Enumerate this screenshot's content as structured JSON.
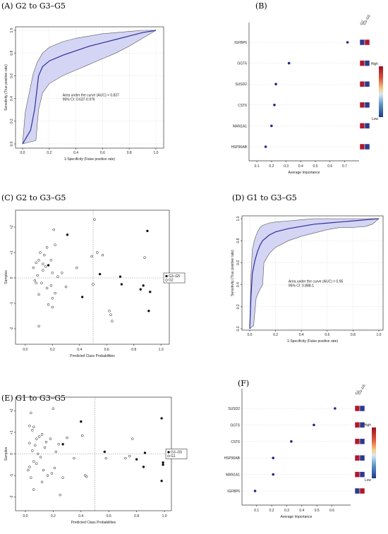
{
  "chart_data": [
    {
      "id": "A",
      "type": "line",
      "panel_label": "(A) G2 to G3–G5",
      "xlabel": "1-Specificity (False positive rate)",
      "ylabel": "Sensitivity (True positive rate)",
      "xlim": [
        0,
        1
      ],
      "ylim": [
        0,
        1
      ],
      "xticks": [
        "0.0",
        "0.2",
        "0.4",
        "0.6",
        "0.8",
        "1.0"
      ],
      "yticks": [
        "0.0",
        "0.2",
        "0.4",
        "0.6",
        "0.8",
        "1.0"
      ],
      "grid": true,
      "annotation": [
        "Area under the curve (AUC) = 0.837",
        "95% CI: 0.637-0.976"
      ],
      "series": [
        {
          "role": "roc",
          "x": [
            0,
            0.03,
            0.06,
            0.09,
            0.12,
            0.15,
            0.2,
            0.3,
            0.4,
            0.5,
            0.6,
            0.7,
            0.8,
            0.9,
            1.0
          ],
          "y": [
            0,
            0.06,
            0.12,
            0.3,
            0.6,
            0.68,
            0.73,
            0.78,
            0.82,
            0.86,
            0.89,
            0.92,
            0.95,
            0.98,
            1.0
          ]
        },
        {
          "role": "ci_upper",
          "x": [
            0,
            0.02,
            0.05,
            0.08,
            0.11,
            0.15,
            0.2,
            0.3,
            0.4,
            0.5,
            0.6,
            0.7,
            0.8,
            0.9,
            1.0
          ],
          "y": [
            0,
            0.28,
            0.45,
            0.62,
            0.72,
            0.8,
            0.85,
            0.9,
            0.93,
            0.95,
            0.97,
            0.98,
            0.99,
            1.0,
            1.0
          ]
        },
        {
          "role": "ci_lower",
          "x": [
            0,
            0.1,
            0.12,
            0.15,
            0.2,
            0.3,
            0.4,
            0.5,
            0.6,
            0.7,
            0.8,
            0.9,
            1.0
          ],
          "y": [
            0,
            0.03,
            0.3,
            0.45,
            0.53,
            0.6,
            0.65,
            0.7,
            0.75,
            0.8,
            0.86,
            0.93,
            1.0
          ]
        }
      ]
    },
    {
      "id": "B",
      "type": "scatter",
      "panel_label": "(B)",
      "xlabel": "Average Importance",
      "xlim": [
        0.08,
        0.78
      ],
      "xticks": [
        "0.1",
        "0.2",
        "0.3",
        "0.4",
        "0.5",
        "0.6",
        "0.7"
      ],
      "categories": [
        "IGFBP6",
        "GGT6",
        "SUSD2",
        "CST6",
        "MAN1A1",
        "HSP90AB"
      ],
      "values": [
        0.72,
        0.32,
        0.23,
        0.22,
        0.2,
        0.16
      ],
      "heat_header": [
        "G2",
        "G3–G5"
      ],
      "heat": [
        [
          "#2b3a8f",
          "#b0182c"
        ],
        [
          "#b0182c",
          "#2b3a8f"
        ],
        [
          "#b0182c",
          "#2b3a8f"
        ],
        [
          "#b0182c",
          "#2b3a8f"
        ],
        [
          "#b0182c",
          "#2b3a8f"
        ],
        [
          "#b0182c",
          "#2b3a8f"
        ]
      ],
      "colorbar": {
        "high": "High",
        "low": "Low"
      }
    },
    {
      "id": "C",
      "type": "scatter",
      "panel_label": "(C) G2 to G3–G5",
      "xlabel": "Predicted Class Probabilities",
      "ylabel": "Samples",
      "xlim": [
        -0.02,
        1.02
      ],
      "ylim": [
        -2.5,
        2.5
      ],
      "xticks": [
        "0.0",
        "0.2",
        "0.4",
        "0.6",
        "0.8",
        "1.0"
      ],
      "yticks": [
        "-2",
        "-1",
        "0",
        "+1",
        "+2"
      ],
      "threshold": 0.5,
      "legend": [
        "G3–G5",
        "G2"
      ],
      "series": [
        {
          "name": "G3–G5",
          "filled": true,
          "x": [
            0.31,
            0.17,
            0.55,
            0.7,
            0.71,
            0.42,
            0.85,
            0.87,
            0.9,
            0.92,
            0.91
          ],
          "y": [
            1.7,
            0.5,
            0.15,
            0.05,
            -0.25,
            -0.75,
            -0.45,
            -0.3,
            1.85,
            -0.55,
            -1.3
          ]
        },
        {
          "name": "G2",
          "filled": true,
          "x": [
            0.06,
            0.08,
            0.1,
            0.13,
            0.15,
            0.16,
            0.11,
            0.14,
            0.19,
            0.22,
            0.21,
            0.13,
            0.09,
            0.07,
            0.2,
            0.24,
            0.27,
            0.19,
            0.16,
            0.1,
            0.22,
            0.3,
            0.38,
            0.12,
            0.17,
            0.2,
            0.1,
            0.08,
            0.51,
            0.53,
            0.49,
            0.57,
            0.5,
            0.62,
            0.63,
            0.64,
            0.88,
            0.2
          ],
          "y": [
            0.4,
            0.6,
            0.7,
            0.55,
            0.45,
            1.2,
            1.0,
            0.9,
            0.7,
            1.3,
            1.9,
            0.3,
            0.1,
            -0.1,
            0.2,
            0.05,
            0.2,
            -0.3,
            -0.4,
            -0.65,
            -0.6,
            -0.35,
            0.4,
            -0.2,
            -1.05,
            -1.15,
            -1.9,
            -0.2,
            2.3,
            1.0,
            0.85,
            0.9,
            -0.25,
            -1.3,
            -1.45,
            -1.7,
            0.8,
            -0.8
          ]
        }
      ]
    },
    {
      "id": "D",
      "type": "line",
      "panel_label": "(D) G1 to G3–G5",
      "xlabel": "1-Specificity (False positive rate)",
      "ylabel": "Sensitivity (True positive rate)",
      "xlim": [
        0,
        1
      ],
      "ylim": [
        0,
        1
      ],
      "xticks": [
        "0.0",
        "0.2",
        "0.4",
        "0.6",
        "0.8",
        "1.0"
      ],
      "yticks": [
        "0.0",
        "0.2",
        "0.4",
        "0.6",
        "0.8",
        "1.0"
      ],
      "grid": true,
      "annotation": [
        "Area under the curve (AUC) = 0.95",
        "95% CI: 0.888-1"
      ],
      "series": [
        {
          "role": "roc",
          "x": [
            0,
            0.01,
            0.02,
            0.04,
            0.06,
            0.08,
            0.1,
            0.15,
            0.2,
            0.3,
            0.4,
            0.5,
            0.6,
            0.7,
            0.8,
            0.9,
            1.0
          ],
          "y": [
            0,
            0.3,
            0.5,
            0.62,
            0.7,
            0.76,
            0.8,
            0.85,
            0.88,
            0.91,
            0.93,
            0.95,
            0.96,
            0.97,
            0.98,
            0.99,
            1.0
          ]
        },
        {
          "role": "ci_upper",
          "x": [
            0,
            0.01,
            0.02,
            0.04,
            0.06,
            0.08,
            0.1,
            0.15,
            0.2,
            0.3,
            0.4,
            0.5,
            1.0
          ],
          "y": [
            0,
            0.5,
            0.72,
            0.82,
            0.88,
            0.92,
            0.94,
            0.96,
            0.97,
            0.98,
            0.99,
            1.0,
            1.0
          ]
        },
        {
          "role": "ci_lower",
          "x": [
            0,
            0.03,
            0.05,
            0.08,
            0.1,
            0.11,
            0.15,
            0.2,
            0.3,
            0.4,
            0.5,
            0.6,
            0.7,
            0.8,
            0.9,
            0.95,
            1.0
          ],
          "y": [
            0,
            0.03,
            0.28,
            0.36,
            0.4,
            0.6,
            0.68,
            0.74,
            0.8,
            0.84,
            0.87,
            0.9,
            0.92,
            0.92,
            0.93,
            0.95,
            1.0
          ]
        }
      ]
    },
    {
      "id": "E",
      "type": "scatter",
      "panel_label": "(E) G1 to G3–G5",
      "xlabel": "Predicted Class Probabilities",
      "ylabel": "Samples",
      "xlim": [
        -0.02,
        1.02
      ],
      "ylim": [
        -2.5,
        2.5
      ],
      "xticks": [
        "0.0",
        "0.2",
        "0.4",
        "0.6",
        "0.8",
        "1.0"
      ],
      "yticks": [
        "-2",
        "-1",
        "0",
        "+1",
        "+2"
      ],
      "threshold": 0.5,
      "legend": [
        "G3–G5",
        "G1"
      ],
      "series": [
        {
          "name": "G3–G5",
          "filled": true,
          "x": [
            0.4,
            0.27,
            0.57,
            0.8,
            0.86,
            0.85,
            0.98,
            0.99,
            0.99,
            0.98
          ],
          "y": [
            1.5,
            0.45,
            0.1,
            -0.25,
            0.05,
            -0.6,
            1.65,
            -0.4,
            -0.5,
            -1.25
          ]
        },
        {
          "name": "G1",
          "filled": true,
          "x": [
            0.03,
            0.04,
            0.06,
            0.05,
            0.08,
            0.07,
            0.03,
            0.1,
            0.12,
            0.15,
            0.18,
            0.2,
            0.24,
            0.3,
            0.05,
            0.09,
            0.11,
            0.14,
            0.22,
            0.06,
            0.08,
            0.03,
            0.04,
            0.13,
            0.19,
            0.27,
            0.16,
            0.21,
            0.43,
            0.44,
            0.25,
            0.02,
            0.35,
            0.41,
            0.58,
            0.72,
            0.75,
            0.77,
            0.06,
            0.12
          ],
          "y": [
            1.3,
            1.9,
            1.25,
            1.1,
            0.7,
            0.4,
            0.5,
            0.8,
            0.9,
            0.55,
            0.7,
            2.1,
            0.45,
            0.75,
            0.15,
            0.0,
            -0.15,
            0.3,
            0.1,
            -0.35,
            -0.45,
            -0.6,
            -1.1,
            -0.75,
            -0.9,
            -1.1,
            -1.0,
            -0.65,
            -1.0,
            -1.05,
            -1.9,
            -0.75,
            -0.2,
            0.85,
            -0.2,
            -0.2,
            -0.1,
            0.7,
            -1.65,
            -1.3
          ]
        }
      ]
    },
    {
      "id": "F",
      "type": "scatter",
      "panel_label": "(F)",
      "xlabel": "Average Importance",
      "xlim": [
        0.05,
        0.7
      ],
      "xticks": [
        "0.1",
        "0.2",
        "0.3",
        "0.4",
        "0.5",
        "0.6"
      ],
      "categories": [
        "SUSD2",
        "GGT6",
        "CST6",
        "HSP90AB",
        "MAN1A1",
        "IGFBP6"
      ],
      "values": [
        0.62,
        0.48,
        0.33,
        0.21,
        0.21,
        0.09
      ],
      "heat_header": [
        "G1",
        "G3–G5"
      ],
      "heat": [
        [
          "#b0182c",
          "#2b3a8f"
        ],
        [
          "#b0182c",
          "#2b3a8f"
        ],
        [
          "#b0182c",
          "#2b3a8f"
        ],
        [
          "#b0182c",
          "#2b3a8f"
        ],
        [
          "#b0182c",
          "#2b3a8f"
        ],
        [
          "#2b3a8f",
          "#b0182c"
        ]
      ],
      "colorbar": {
        "high": "High",
        "low": "Low"
      }
    }
  ],
  "colors": {
    "roc_line": "#2e2e9a",
    "ci_fill": "#d4d4f4",
    "ci_edge": "#555555",
    "point": "#1f2a8a"
  }
}
